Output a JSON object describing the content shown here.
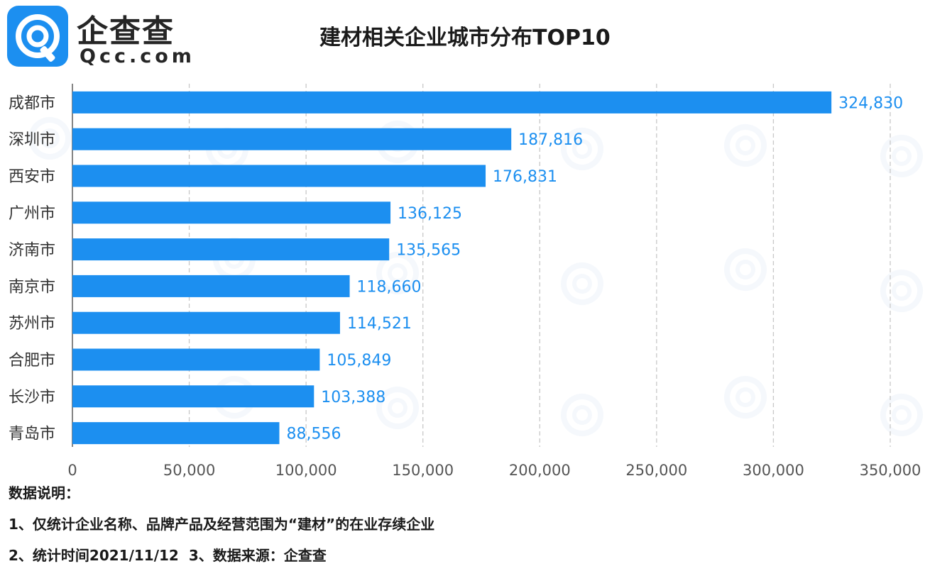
{
  "header": {
    "logo_cn": "企查查",
    "logo_en": "Qcc.com",
    "title": "建材相关企业城市分布TOP10"
  },
  "notes": {
    "heading": "数据说明：",
    "line1": "1、仅统计企业名称、品牌产品及经营范围为“建材”的在业存续企业",
    "line2a": "2、统计时间2021/11/12",
    "line2b": "3、数据来源：企查查"
  },
  "colors": {
    "bar": "#1c8ff0",
    "value_label": "#1c8ff0",
    "grid": "#c8c8c8",
    "axis_text": "#555555",
    "watermark": "#eef4fa"
  },
  "chart_data": {
    "type": "bar",
    "orientation": "horizontal",
    "title": "建材相关企业城市分布TOP10",
    "categories": [
      "成都市",
      "深圳市",
      "西安市",
      "广州市",
      "济南市",
      "南京市",
      "苏州市",
      "合肥市",
      "长沙市",
      "青岛市"
    ],
    "values": [
      324830,
      187816,
      176831,
      136125,
      135565,
      118660,
      114521,
      105849,
      103388,
      88556
    ],
    "value_labels": [
      "324,830",
      "187,816",
      "176,831",
      "136,125",
      "135,565",
      "118,660",
      "114,521",
      "105,849",
      "103,388",
      "88,556"
    ],
    "xlim": [
      0,
      350000
    ],
    "xticks": [
      0,
      50000,
      100000,
      150000,
      200000,
      250000,
      300000,
      350000
    ],
    "xtick_labels": [
      "0",
      "50,000",
      "100,000",
      "150,000",
      "200,000",
      "250,000",
      "300,000",
      "350,000"
    ],
    "grid": "vertical dashed",
    "xlabel": "",
    "ylabel": ""
  }
}
